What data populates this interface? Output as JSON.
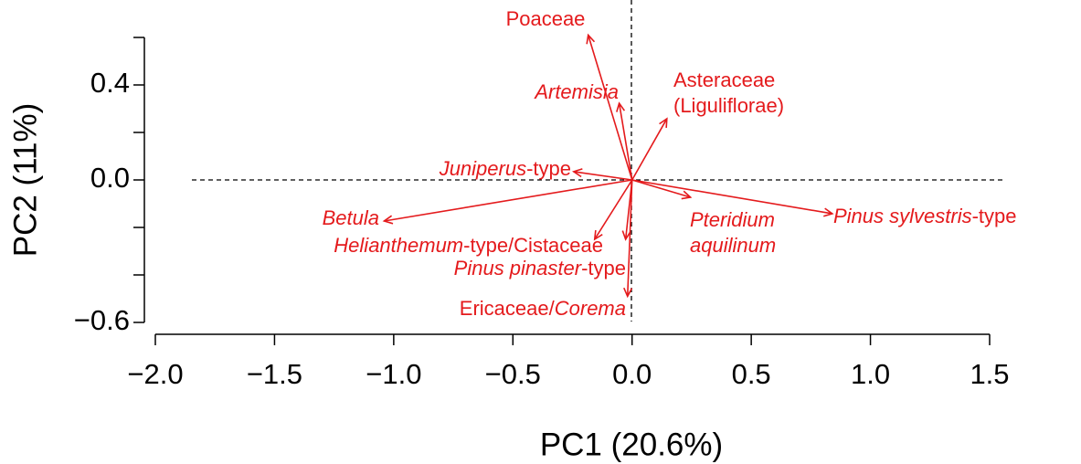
{
  "chart_data": {
    "type": "biplot",
    "xlabel": "PC1 (20.6%)",
    "ylabel": "PC2 (11%)",
    "color": "#e41a1c",
    "x": [
      -0.184,
      -0.054,
      0.146,
      -0.245,
      -1.04,
      -0.157,
      -0.027,
      -0.019,
      0.245,
      0.84
    ],
    "values": [
      0.61,
      0.323,
      0.258,
      0.035,
      -0.173,
      -0.25,
      -0.25,
      -0.49,
      -0.073,
      -0.142
    ],
    "labels": [
      [
        [
          {
            "text": "Poaceae"
          }
        ]
      ],
      [
        [
          {
            "text": "Artemisia",
            "italic": true
          }
        ]
      ],
      [
        [
          {
            "text": "Asteraceae"
          }
        ],
        [
          {
            "text": "(Liguliflorae)"
          }
        ]
      ],
      [
        [
          {
            "text": "Juniperus",
            "italic": true
          },
          {
            "text": "-type"
          }
        ]
      ],
      [
        [
          {
            "text": "Betula",
            "italic": true
          }
        ]
      ],
      [
        [
          {
            "text": "Helianthemum",
            "italic": true
          },
          {
            "text": "-type/Cistaceae"
          }
        ]
      ],
      [
        [
          {
            "text": "Pinus pinaster",
            "italic": true
          },
          {
            "text": "-type"
          }
        ]
      ],
      [
        [
          {
            "text": "Ericaceae/"
          },
          {
            "text": "Corema",
            "italic": true
          }
        ]
      ],
      [
        [
          {
            "text": "Pteridium",
            "italic": true
          }
        ],
        [
          {
            "text": "aquilinum",
            "italic": true
          }
        ]
      ],
      [
        [
          {
            "text": "Pinus sylvestris",
            "italic": true
          },
          {
            "text": "-type"
          }
        ]
      ]
    ],
    "xlim": [
      -2.0,
      1.5
    ],
    "xticks": [
      {
        "value": -2.0,
        "label": "−2.0"
      },
      {
        "value": -1.5,
        "label": "−1.5"
      },
      {
        "value": -1.0,
        "label": "−1.0"
      },
      {
        "value": -0.5,
        "label": "−0.5"
      },
      {
        "value": 0,
        "label": "0.0"
      },
      0.5,
      {
        "value": 1.0,
        "label": "1.0"
      },
      1.5
    ],
    "ylim": [
      -0.6,
      0.6
    ],
    "yticks": [
      {
        "value": -0.6,
        "label": "−0.6"
      },
      {
        "value": -0.4,
        "label": null
      },
      {
        "value": -0.2,
        "label": null
      },
      {
        "value": 0,
        "label": "0.0"
      },
      {
        "value": 0.2,
        "label": null
      },
      0.4,
      {
        "value": 0.6,
        "label": null
      }
    ]
  }
}
